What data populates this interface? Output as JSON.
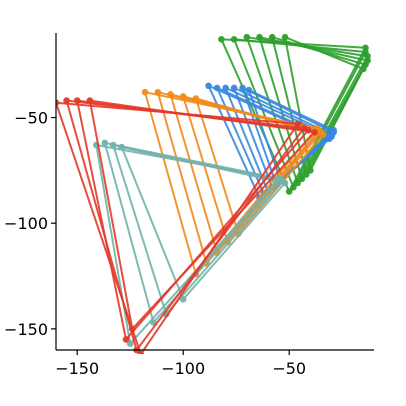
{
  "chart_data": {
    "type": "line",
    "title": "",
    "xlabel": "",
    "ylabel": "",
    "xlim": [
      -160,
      -10
    ],
    "ylim": [
      -160,
      -10
    ],
    "xticks": [
      -150,
      -100,
      -50
    ],
    "yticks": [
      -50,
      -100,
      -150
    ],
    "xtick_labels": [
      "−150",
      "−100",
      "−50"
    ],
    "ytick_labels": [
      "−50",
      "−100",
      "−150"
    ],
    "grid": false,
    "legend": "none",
    "series": [
      {
        "color": "#2ca02c",
        "triangles": [
          [
            [
              -82,
              -13
            ],
            [
              -14,
              -17
            ],
            [
              -50,
              -85
            ]
          ],
          [
            [
              -76,
              -13
            ],
            [
              -14,
              -19
            ],
            [
              -48,
              -83
            ]
          ],
          [
            [
              -70,
              -12
            ],
            [
              -13,
              -21
            ],
            [
              -46,
              -81
            ]
          ],
          [
            [
              -64,
              -12
            ],
            [
              -13,
              -23
            ],
            [
              -44,
              -79
            ]
          ],
          [
            [
              -58,
              -12
            ],
            [
              -14,
              -25
            ],
            [
              -42,
              -77
            ]
          ],
          [
            [
              -52,
              -12
            ],
            [
              -15,
              -27
            ],
            [
              -40,
              -75
            ]
          ]
        ]
      },
      {
        "color": "#3a87e0",
        "triangles": [
          [
            [
              -88,
              -35
            ],
            [
              -32,
              -60
            ],
            [
              -64,
              -88
            ]
          ],
          [
            [
              -84,
              -36
            ],
            [
              -31,
              -60
            ],
            [
              -62,
              -86
            ]
          ],
          [
            [
              -80,
              -36
            ],
            [
              -30,
              -59
            ],
            [
              -60,
              -85
            ]
          ],
          [
            [
              -76,
              -36
            ],
            [
              -30,
              -58
            ],
            [
              -58,
              -83
            ]
          ],
          [
            [
              -72,
              -36
            ],
            [
              -29,
              -57
            ],
            [
              -56,
              -82
            ]
          ],
          [
            [
              -69,
              -37
            ],
            [
              -29,
              -56
            ],
            [
              -54,
              -80
            ]
          ]
        ]
      },
      {
        "color": "#f28a1c",
        "triangles": [
          [
            [
              -118,
              -38
            ],
            [
              -37,
              -55
            ],
            [
              -94,
              -124
            ]
          ],
          [
            [
              -112,
              -38
            ],
            [
              -36,
              -56
            ],
            [
              -89,
              -119
            ]
          ],
          [
            [
              -106,
              -39
            ],
            [
              -36,
              -57
            ],
            [
              -84,
              -114
            ]
          ],
          [
            [
              -100,
              -40
            ],
            [
              -35,
              -57
            ],
            [
              -79,
              -109
            ]
          ],
          [
            [
              -94,
              -41
            ],
            [
              -34,
              -58
            ],
            [
              -74,
              -105
            ]
          ]
        ]
      },
      {
        "color": "#72b2ab",
        "triangles": [
          [
            [
              -141,
              -63
            ],
            [
              -55,
              -79
            ],
            [
              -125,
              -157
            ]
          ],
          [
            [
              -137,
              -62
            ],
            [
              -54,
              -79
            ],
            [
              -114,
              -147
            ]
          ],
          [
            [
              -133,
              -63
            ],
            [
              -53,
              -80
            ],
            [
              -108,
              -143
            ]
          ],
          [
            [
              -129,
              -64
            ],
            [
              -52,
              -81
            ],
            [
              -100,
              -136
            ]
          ]
        ]
      },
      {
        "color": "#e23a2a",
        "triangles": [
          [
            [
              -160,
              -43
            ],
            [
              -46,
              -53
            ],
            [
              -120,
              -162
            ]
          ],
          [
            [
              -155,
              -42
            ],
            [
              -43,
              -55
            ],
            [
              -122,
              -160
            ]
          ],
          [
            [
              -150,
              -42
            ],
            [
              -41,
              -56
            ],
            [
              -127,
              -155
            ]
          ],
          [
            [
              -144,
              -42
            ],
            [
              -38,
              -57
            ],
            [
              -124,
              -150
            ]
          ]
        ]
      }
    ]
  }
}
